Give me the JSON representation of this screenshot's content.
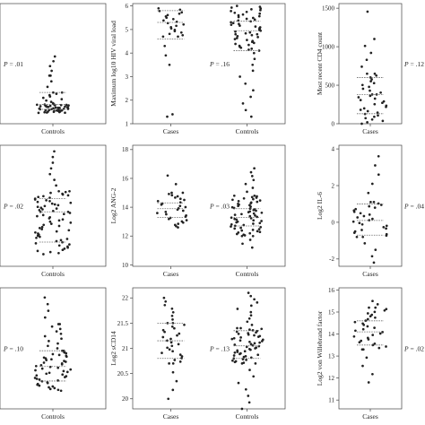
{
  "chart_data": [
    {
      "type": "scatter",
      "ylabel": "",
      "p_value": ".01",
      "groups": [
        "Controls"
      ],
      "ylim": [
        0,
        10
      ],
      "ticks": [],
      "series": [
        {
          "median": 1.6,
          "q1": 1.2,
          "q3": 2.6,
          "spread": [
            [
              0.9,
              1.2,
              18
            ],
            [
              1.2,
              1.6,
              26
            ],
            [
              1.6,
              2.6,
              10
            ],
            [
              2.6,
              4.0,
              4
            ],
            [
              4.0,
              5.6,
              5
            ]
          ]
        }
      ]
    },
    {
      "type": "scatter",
      "ylabel": "Maximum log10 HIV viral load",
      "p_value": ".16",
      "groups": [
        "Cases",
        "Controls"
      ],
      "ylim": [
        1,
        6.1
      ],
      "ticks": [
        1,
        2,
        3,
        4,
        5,
        6
      ],
      "series": [
        {
          "median": 5.3,
          "q1": 4.6,
          "q3": 5.8,
          "spread": [
            [
              4.7,
              5.9,
              22
            ],
            [
              3.5,
              4.7,
              4
            ],
            [
              1.3,
              1.4,
              2
            ]
          ]
        },
        {
          "median": 4.95,
          "q1": 4.1,
          "q3": 5.35,
          "spread": [
            [
              4.8,
              6.0,
              34
            ],
            [
              4.1,
              4.8,
              18
            ],
            [
              3.0,
              4.0,
              5
            ],
            [
              1.3,
              2.7,
              6
            ]
          ]
        }
      ]
    },
    {
      "type": "scatter",
      "ylabel": "Most recent CD4 count",
      "p_value": ".12",
      "groups": [
        "Cases"
      ],
      "ylim": [
        0,
        1560
      ],
      "ticks": [
        0,
        500,
        1000,
        1500
      ],
      "series": [
        {
          "median": 380,
          "q1": 130,
          "q3": 600,
          "spread": [
            [
              0,
              380,
              22
            ],
            [
              380,
              650,
              12
            ],
            [
              650,
              1100,
              6
            ],
            [
              1450,
              1460,
              1
            ]
          ]
        }
      ]
    },
    {
      "type": "scatter",
      "ylabel": "",
      "p_value": ".02",
      "groups": [
        "Controls"
      ],
      "ylim": [
        0,
        10
      ],
      "ticks": [],
      "series": [
        {
          "median": 4.5,
          "q1": 2.0,
          "q3": 5.6,
          "spread": [
            [
              1.0,
              4.5,
              40
            ],
            [
              4.5,
              6.2,
              26
            ],
            [
              6.2,
              9.5,
              8
            ]
          ]
        }
      ]
    },
    {
      "type": "scatter",
      "ylabel": "Log2 ANG-2",
      "p_value": ".03",
      "groups": [
        "Cases",
        "Controls"
      ],
      "ylim": [
        9.9,
        18.3
      ],
      "ticks": [
        10,
        12,
        14,
        16,
        18
      ],
      "series": [
        {
          "median": 13.9,
          "q1": 13.3,
          "q3": 14.3,
          "spread": [
            [
              12.6,
              15.0,
              30
            ],
            [
              15.0,
              16.2,
              3
            ]
          ]
        },
        {
          "median": 13.3,
          "q1": 12.7,
          "q3": 13.9,
          "spread": [
            [
              12.0,
              14.8,
              60
            ],
            [
              14.8,
              16.7,
              8
            ],
            [
              11.2,
              12.0,
              4
            ]
          ]
        }
      ]
    },
    {
      "type": "scatter",
      "ylabel": "Log2 IL-6",
      "p_value": ".04",
      "groups": [
        "Cases"
      ],
      "ylim": [
        -2.4,
        4.2
      ],
      "ticks": [
        -2,
        0,
        2,
        4
      ],
      "series": [
        {
          "median": 0.1,
          "q1": -0.7,
          "q3": 1.0,
          "spread": [
            [
              -0.8,
              1.1,
              26
            ],
            [
              1.1,
              3.6,
              6
            ],
            [
              -2.2,
              -0.8,
              5
            ]
          ]
        }
      ]
    },
    {
      "type": "scatter",
      "ylabel": "",
      "p_value": ".10",
      "groups": [
        "Controls"
      ],
      "ylim": [
        0,
        10
      ],
      "ticks": [],
      "series": [
        {
          "median": 3.5,
          "q1": 2.3,
          "q3": 4.8,
          "spread": [
            [
              1.5,
              4.8,
              48
            ],
            [
              4.8,
              7.0,
              12
            ],
            [
              7.0,
              9.2,
              5
            ]
          ]
        }
      ]
    },
    {
      "type": "scatter",
      "ylabel": "Log2 sCD14",
      "p_value": ".13",
      "groups": [
        "Cases",
        "Controls"
      ],
      "ylim": [
        19.8,
        22.2
      ],
      "ticks": [
        20,
        20.5,
        21,
        21.5,
        22
      ],
      "series": [
        {
          "median": 21.15,
          "q1": 20.8,
          "q3": 21.5,
          "spread": [
            [
              20.7,
              21.5,
              24
            ],
            [
              21.5,
              22.0,
              8
            ],
            [
              20.0,
              20.7,
              5
            ]
          ]
        },
        {
          "median": 21.05,
          "q1": 20.8,
          "q3": 21.35,
          "spread": [
            [
              20.7,
              21.4,
              50
            ],
            [
              21.4,
              22.1,
              12
            ],
            [
              19.8,
              20.7,
              8
            ]
          ]
        }
      ]
    },
    {
      "type": "scatter",
      "ylabel": "Log2 von Willebrand factor",
      "p_value": ".02",
      "groups": [
        "Cases"
      ],
      "ylim": [
        10.6,
        16.1
      ],
      "ticks": [
        11,
        12,
        13,
        14,
        15,
        16
      ],
      "series": [
        {
          "median": 14.1,
          "q1": 13.5,
          "q3": 14.6,
          "spread": [
            [
              13.3,
              15.2,
              30
            ],
            [
              15.2,
              15.5,
              3
            ],
            [
              11.8,
              13.3,
              5
            ]
          ]
        }
      ]
    }
  ]
}
